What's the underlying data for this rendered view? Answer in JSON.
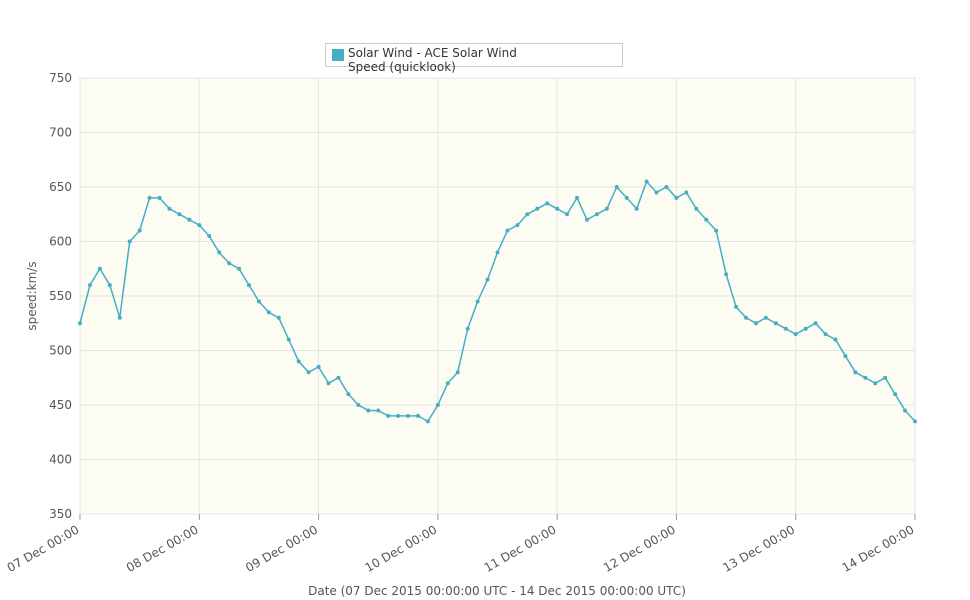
{
  "chart_data": {
    "type": "line",
    "legend_text": "Solar Wind - ACE Solar Wind Speed (quicklook)",
    "y_label": "speed:km/s",
    "x_label": "Date (07 Dec 2015 00:00:00 UTC - 14 Dec 2015 00:00:00 UTC)",
    "x": [
      "07 Dec 00:00",
      "07 Dec 02:00",
      "07 Dec 04:00",
      "07 Dec 06:00",
      "07 Dec 08:00",
      "07 Dec 10:00",
      "07 Dec 12:00",
      "07 Dec 14:00",
      "07 Dec 16:00",
      "07 Dec 18:00",
      "07 Dec 20:00",
      "07 Dec 22:00",
      "08 Dec 00:00",
      "08 Dec 02:00",
      "08 Dec 04:00",
      "08 Dec 06:00",
      "08 Dec 08:00",
      "08 Dec 10:00",
      "08 Dec 12:00",
      "08 Dec 14:00",
      "08 Dec 16:00",
      "08 Dec 18:00",
      "08 Dec 20:00",
      "08 Dec 22:00",
      "09 Dec 00:00",
      "09 Dec 02:00",
      "09 Dec 04:00",
      "09 Dec 06:00",
      "09 Dec 08:00",
      "09 Dec 10:00",
      "09 Dec 12:00",
      "09 Dec 14:00",
      "09 Dec 16:00",
      "09 Dec 18:00",
      "09 Dec 20:00",
      "09 Dec 22:00",
      "10 Dec 00:00",
      "10 Dec 02:00",
      "10 Dec 04:00",
      "10 Dec 06:00",
      "10 Dec 08:00",
      "10 Dec 10:00",
      "10 Dec 12:00",
      "10 Dec 14:00",
      "10 Dec 16:00",
      "10 Dec 18:00",
      "10 Dec 20:00",
      "10 Dec 22:00",
      "11 Dec 00:00",
      "11 Dec 02:00",
      "11 Dec 04:00",
      "11 Dec 06:00",
      "11 Dec 08:00",
      "11 Dec 10:00",
      "11 Dec 12:00",
      "11 Dec 14:00",
      "11 Dec 16:00",
      "11 Dec 18:00",
      "11 Dec 20:00",
      "11 Dec 22:00",
      "12 Dec 00:00",
      "12 Dec 02:00",
      "12 Dec 04:00",
      "12 Dec 06:00",
      "12 Dec 08:00",
      "12 Dec 10:00",
      "12 Dec 12:00",
      "12 Dec 14:00",
      "12 Dec 16:00",
      "12 Dec 18:00",
      "12 Dec 20:00",
      "12 Dec 22:00",
      "13 Dec 00:00",
      "13 Dec 02:00",
      "13 Dec 04:00",
      "13 Dec 06:00",
      "13 Dec 08:00",
      "13 Dec 10:00",
      "13 Dec 12:00",
      "13 Dec 14:00",
      "13 Dec 16:00",
      "13 Dec 18:00",
      "13 Dec 20:00",
      "13 Dec 22:00",
      "14 Dec 00:00"
    ],
    "series": [
      {
        "name": "Solar Wind - ACE Solar Wind Speed (quicklook)",
        "color": "#45aec5",
        "values": [
          525,
          560,
          575,
          560,
          530,
          600,
          610,
          640,
          640,
          630,
          625,
          620,
          615,
          605,
          590,
          580,
          575,
          560,
          545,
          535,
          530,
          510,
          490,
          480,
          485,
          470,
          475,
          460,
          450,
          445,
          445,
          440,
          440,
          440,
          440,
          435,
          450,
          470,
          480,
          520,
          545,
          565,
          590,
          610,
          615,
          625,
          630,
          635,
          630,
          625,
          640,
          620,
          625,
          630,
          650,
          640,
          630,
          655,
          645,
          650,
          640,
          645,
          630,
          620,
          610,
          570,
          540,
          530,
          525,
          530,
          525,
          520,
          515,
          520,
          525,
          515,
          510,
          495,
          480,
          475,
          470,
          475,
          460,
          445,
          435
        ]
      }
    ],
    "xlim": [
      "07 Dec 00:00",
      "14 Dec 00:00"
    ],
    "xticks": [
      "07 Dec 00:00",
      "08 Dec 00:00",
      "09 Dec 00:00",
      "10 Dec 00:00",
      "11 Dec 00:00",
      "12 Dec 00:00",
      "13 Dec 00:00",
      "14 Dec 00:00"
    ],
    "ylim": [
      350,
      750
    ],
    "yticks": [
      350,
      400,
      450,
      500,
      550,
      600,
      650,
      700,
      750
    ],
    "grid": true
  }
}
